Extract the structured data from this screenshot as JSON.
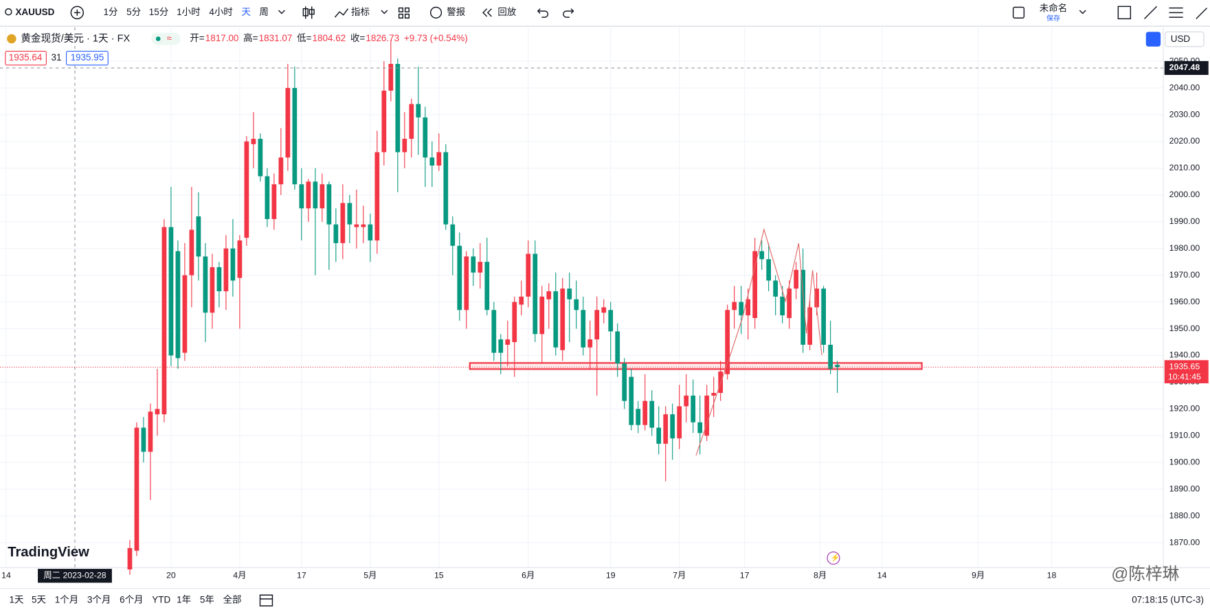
{
  "toolbar": {
    "symbol": "XAUUSD",
    "intervals": [
      "1分",
      "5分",
      "15分",
      "1小时",
      "4小时",
      "天",
      "周"
    ],
    "indicators": "指标",
    "alert": "警报",
    "replay": "回放",
    "layout_name": "未命名",
    "save": "保存"
  },
  "legend": {
    "title": "黄金现货/美元 · 1天 · FX",
    "ohlc": [
      {
        "label": "开=",
        "value": "1817.00"
      },
      {
        "label": "高=",
        "value": "1831.07"
      },
      {
        "label": "低=",
        "value": "1804.62"
      },
      {
        "label": "收=",
        "value": "1826.73"
      }
    ],
    "change": "+9.73 (+0.54%)",
    "sell": "1935.64",
    "spread": "31",
    "buy": "1935.95",
    "currency": "USD"
  },
  "chart_data": {
    "type": "candlestick",
    "up_color": "#f23645",
    "down_color": "#089981",
    "grid": true,
    "x": [
      18,
      19,
      20,
      21,
      22,
      23,
      24,
      25,
      26,
      27,
      28,
      29,
      30,
      31,
      32,
      33,
      34,
      35,
      36,
      37,
      38,
      39,
      40,
      41,
      42,
      43,
      44,
      45,
      46,
      47,
      48,
      49,
      50,
      51,
      52,
      53,
      54,
      55,
      56,
      57,
      58,
      59,
      60,
      61,
      62,
      63,
      64,
      65,
      66,
      67,
      68,
      69,
      70,
      71,
      72,
      73,
      74,
      75,
      76,
      77,
      78,
      79,
      80,
      81,
      82,
      83,
      84,
      85,
      86,
      87,
      88,
      89,
      90,
      91,
      92,
      93,
      94,
      95,
      96,
      97,
      98,
      99,
      100,
      101,
      102,
      103,
      104,
      105,
      106,
      107,
      108,
      109,
      110,
      111,
      112,
      113,
      114,
      115,
      116,
      117,
      118,
      119,
      120,
      121
    ],
    "open": [
      1860,
      1867,
      1913,
      1904,
      1918,
      1918,
      1988,
      1979,
      1941,
      1970,
      1992,
      1977,
      1956,
      1973,
      1964,
      1980,
      1969,
      1984,
      2019,
      2021,
      2007,
      1991,
      2004,
      2014,
      2040,
      2004,
      1995,
      2005,
      1995,
      2004,
      1989,
      1982,
      1997,
      1988,
      1988,
      1989,
      1983,
      2016,
      2039,
      2049,
      2016,
      2021,
      2034,
      2029,
      2014,
      2011,
      2016,
      1989,
      1981,
      1957,
      1977,
      1971,
      1975,
      1957,
      1946,
      1944,
      1945,
      1959,
      1962,
      1978,
      1948,
      1961,
      1964,
      1942,
      1965,
      1961,
      1957,
      1943,
      1946,
      1956,
      1957,
      1949,
      1937,
      1932,
      1920,
      1914,
      1923,
      1913,
      1907,
      1918,
      1909,
      1921,
      1925,
      1915,
      1910,
      1925,
      1926,
      1933,
      1957,
      1960,
      1955,
      1954,
      1979,
      1976,
      1968,
      1962,
      1954,
      1965,
      1972,
      1944,
      1958,
      1965,
      1944,
      1936.5
    ],
    "high": [
      1871,
      1915,
      1917,
      1922,
      1935,
      1991,
      2003,
      1983,
      1982,
      2003,
      2001,
      1982,
      1978,
      1975,
      1985,
      1991,
      1985,
      2022,
      2031,
      2023,
      2010,
      2008,
      2025,
      2049,
      2048,
      2010,
      2006,
      2010,
      2008,
      2005,
      1995,
      2004,
      2000,
      2002,
      1996,
      1993,
      2024,
      2050,
      2058,
      2051,
      2031,
      2036,
      2048,
      2033,
      2020,
      2023,
      2019,
      1992,
      1986,
      1979,
      1980,
      1982,
      1984,
      1960,
      1948,
      1953,
      1962,
      1968,
      1983,
      1983,
      1966,
      1967,
      1971,
      1969,
      1971,
      1968,
      1962,
      1953,
      1962,
      1961,
      1960,
      1952,
      1939,
      1935,
      1923,
      1933,
      1927,
      1921,
      1921,
      1922,
      1929,
      1933,
      1931,
      1925,
      1929,
      1932,
      1938,
      1959,
      1966,
      1966,
      1965,
      1984,
      1983,
      1982,
      1970,
      1966,
      1968,
      1975,
      1980,
      1961,
      1971,
      1966,
      1953,
      1938
    ],
    "low": [
      1858,
      1865,
      1900,
      1886,
      1910,
      1915,
      1936,
      1935,
      1938,
      1958,
      1968,
      1945,
      1950,
      1958,
      1957,
      1962,
      1950,
      1981,
      2010,
      2005,
      1988,
      1987,
      2000,
      2009,
      2002,
      1983,
      1990,
      1970,
      1990,
      1972,
      1975,
      1976,
      1982,
      1980,
      1982,
      1975,
      1978,
      2011,
      2035,
      2001,
      2010,
      2014,
      2015,
      2003,
      2003,
      2009,
      1987,
      1970,
      1953,
      1950,
      1966,
      1965,
      1955,
      1938,
      1933,
      1936,
      1932,
      1955,
      1958,
      1945,
      1937,
      1950,
      1940,
      1938,
      1945,
      1950,
      1940,
      1935,
      1925,
      1952,
      1938,
      1932,
      1920,
      1912,
      1911,
      1912,
      1910,
      1903,
      1893,
      1901,
      1905,
      1915,
      1911,
      1903,
      1908,
      1917,
      1923,
      1931,
      1950,
      1948,
      1946,
      1950,
      1972,
      1964,
      1955,
      1952,
      1950,
      1961,
      1941,
      1942,
      1955,
      1941,
      1933,
      1926
    ],
    "close": [
      1868,
      1913,
      1904,
      1919,
      1920,
      1988,
      1940,
      1939,
      1970,
      1987,
      1977,
      1956,
      1973,
      1964,
      1980,
      1968,
      1983,
      2020,
      2021,
      2007,
      1991,
      2004,
      2014,
      2040,
      2004,
      1995,
      2005,
      1995,
      2004,
      1989,
      1982,
      1997,
      1989,
      1989,
      1989,
      1983,
      2016,
      2039,
      2049,
      2016,
      2021,
      2034,
      2029,
      2014,
      2011,
      2016,
      1989,
      1981,
      1957,
      1977,
      1971,
      1975,
      1957,
      1941,
      1941,
      1946,
      1960,
      1962,
      1978,
      1948,
      1962,
      1964,
      1943,
      1965,
      1961,
      1957,
      1943,
      1946,
      1957,
      1958,
      1949,
      1937,
      1923,
      1914,
      1914,
      1923,
      1913,
      1907,
      1918,
      1909,
      1921,
      1925,
      1915,
      1911,
      1925,
      1926,
      1934,
      1957,
      1960,
      1955,
      1961,
      1979,
      1976,
      1968,
      1962,
      1955,
      1965,
      1972,
      1944,
      1958,
      1965,
      1944,
      1935,
      1935.6
    ],
    "xlim": [
      -0.9,
      168.4
    ],
    "ylim": [
      1860.8,
      2062.7
    ],
    "xticks": [
      {
        "value": 0,
        "label": "14"
      },
      {
        "value": 24,
        "label": "20"
      },
      {
        "value": 34,
        "label": "4月"
      },
      {
        "value": 43,
        "label": "17"
      },
      {
        "value": 53,
        "label": "5月"
      },
      {
        "value": 63,
        "label": "15"
      },
      {
        "value": 76,
        "label": "6月"
      },
      {
        "value": 88,
        "label": "19"
      },
      {
        "value": 98,
        "label": "7月"
      },
      {
        "value": 107.5,
        "label": "17"
      },
      {
        "value": 118.5,
        "label": "8月"
      },
      {
        "value": 127.5,
        "label": "14"
      },
      {
        "value": 141.5,
        "label": "9月"
      },
      {
        "value": 152.2,
        "label": "18"
      }
    ],
    "yticks": [
      {
        "value": 1870,
        "label": "1870.00"
      },
      {
        "value": 1880,
        "label": "1880.00"
      },
      {
        "value": 1890,
        "label": "1890.00"
      },
      {
        "value": 1900,
        "label": "1900.00"
      },
      {
        "value": 1910,
        "label": "1910.00"
      },
      {
        "value": 1920,
        "label": "1920.00"
      },
      {
        "value": 1930,
        "label": "1930.00"
      },
      {
        "value": 1940,
        "label": "1940.00"
      },
      {
        "value": 1950,
        "label": "1950.00"
      },
      {
        "value": 1960,
        "label": "1960.00"
      },
      {
        "value": 1970,
        "label": "1970.00"
      },
      {
        "value": 1980,
        "label": "1980.00"
      },
      {
        "value": 1990,
        "label": "1990.00"
      },
      {
        "value": 2000,
        "label": "2000.00"
      },
      {
        "value": 2010,
        "label": "2010.00"
      },
      {
        "value": 2020,
        "label": "2020.00"
      },
      {
        "value": 2030,
        "label": "2030.00"
      },
      {
        "value": 2040,
        "label": "2040.00"
      },
      {
        "value": 2050,
        "label": "2050.00"
      }
    ],
    "crosshair": {
      "x": 10,
      "y": 2047.48,
      "label": "周二 2023-02-28"
    },
    "last_price": {
      "value": 1935.65,
      "countdown": "10:41:45"
    },
    "zone": {
      "x": [
        67.5,
        133.3
      ],
      "y": [
        1934.9,
        1937.2
      ]
    }
  },
  "bottom_bar": {
    "ranges": [
      "1天",
      "5天",
      "1个月",
      "3个月",
      "6个月",
      "YTD",
      "1年",
      "5年",
      "全部"
    ],
    "clock": "07:18:15 (UTC-3)"
  },
  "logo": "TradingView",
  "watermark": "@陈梓琳"
}
